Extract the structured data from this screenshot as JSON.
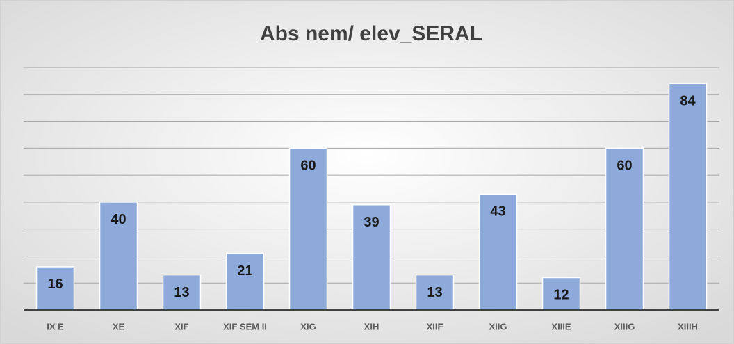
{
  "chart_data": {
    "type": "bar",
    "title": "Abs nem/ elev_SERAL",
    "categories": [
      "IX E",
      "XE",
      "XIF",
      "XIF SEM II",
      "XIG",
      "XIH",
      "XIIF",
      "XIIG",
      "XIIIE",
      "XIIIG",
      "XIIIH"
    ],
    "values": [
      16,
      40,
      13,
      21,
      60,
      39,
      13,
      43,
      12,
      60,
      84
    ],
    "color": "#8eaadb",
    "ylim": [
      0,
      90
    ],
    "yticks": [
      0,
      10,
      20,
      30,
      40,
      50,
      60,
      70,
      80,
      90
    ],
    "grid": true
  }
}
